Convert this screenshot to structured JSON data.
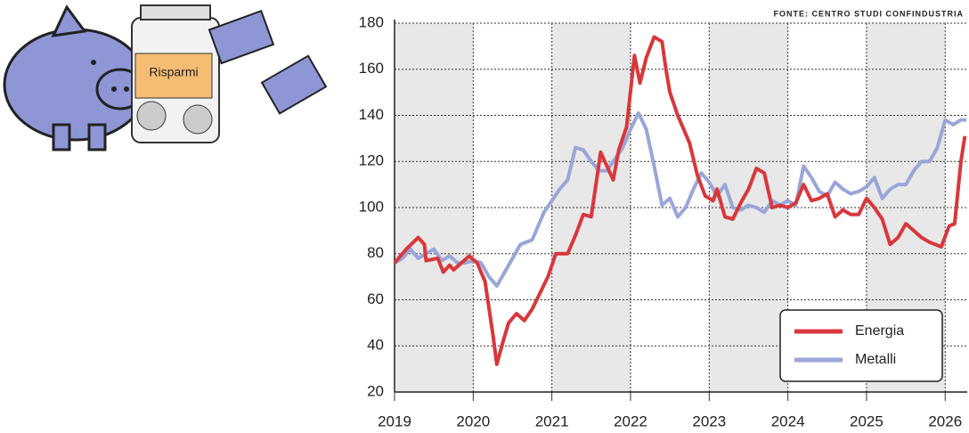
{
  "chart_data": {
    "type": "line",
    "source": "FONTE: CENTRO STUDI CONFINDUSTRIA",
    "illustration_label": "Risparmi",
    "xlim": [
      2019,
      2026.28
    ],
    "xticks": [
      2019,
      2020,
      2021,
      2022,
      2023,
      2024,
      2025,
      2026
    ],
    "ylim": [
      20,
      180
    ],
    "yticks": [
      20,
      40,
      60,
      80,
      100,
      120,
      140,
      160,
      180
    ],
    "grid": true,
    "legend": "lower right",
    "series": [
      {
        "name": "Energia",
        "color": "#d9373b",
        "x": [
          2019.0,
          2019.15,
          2019.3,
          2019.38,
          2019.4,
          2019.55,
          2019.62,
          2019.7,
          2019.75,
          2019.85,
          2019.95,
          2020.05,
          2020.15,
          2020.25,
          2020.3,
          2020.38,
          2020.45,
          2020.55,
          2020.65,
          2020.75,
          2020.85,
          2020.95,
          2021.05,
          2021.2,
          2021.3,
          2021.4,
          2021.5,
          2021.62,
          2021.7,
          2021.78,
          2021.85,
          2021.95,
          2022.05,
          2022.12,
          2022.2,
          2022.3,
          2022.4,
          2022.45,
          2022.5,
          2022.6,
          2022.75,
          2022.85,
          2022.95,
          2023.05,
          2023.1,
          2023.2,
          2023.3,
          2023.4,
          2023.5,
          2023.6,
          2023.7,
          2023.8,
          2023.9,
          2024.0,
          2024.1,
          2024.2,
          2024.3,
          2024.4,
          2024.5,
          2024.6,
          2024.7,
          2024.8,
          2024.9,
          2025.0,
          2025.1,
          2025.2,
          2025.3,
          2025.4,
          2025.5,
          2025.6,
          2025.7,
          2025.8,
          2025.95,
          2026.05,
          2026.12,
          2026.2,
          2026.25
        ],
        "values": [
          76,
          82,
          87,
          84,
          77,
          78,
          72,
          75,
          73,
          76,
          79,
          76,
          68,
          45,
          32,
          42,
          50,
          54,
          51,
          56,
          63,
          70,
          80,
          80,
          88,
          97,
          96,
          124,
          118,
          112,
          125,
          135,
          166,
          154,
          165,
          174,
          172,
          160,
          150,
          140,
          128,
          114,
          105,
          103,
          108,
          96,
          95,
          102,
          108,
          117,
          115,
          100,
          101,
          100,
          102,
          110,
          103,
          104,
          106,
          96,
          99,
          97,
          97,
          104,
          100,
          95,
          84,
          87,
          93,
          90,
          87,
          85,
          83,
          92,
          93,
          120,
          131
        ]
      },
      {
        "name": "Metalli",
        "color": "#99a6d8",
        "x": [
          2019.0,
          2019.1,
          2019.2,
          2019.3,
          2019.4,
          2019.5,
          2019.6,
          2019.7,
          2019.8,
          2019.9,
          2020.0,
          2020.1,
          2020.2,
          2020.3,
          2020.4,
          2020.5,
          2020.6,
          2020.75,
          2020.9,
          2021.0,
          2021.1,
          2021.2,
          2021.3,
          2021.4,
          2021.5,
          2021.6,
          2021.7,
          2021.8,
          2021.9,
          2022.0,
          2022.1,
          2022.2,
          2022.3,
          2022.4,
          2022.5,
          2022.6,
          2022.7,
          2022.8,
          2022.9,
          2023.0,
          2023.1,
          2023.2,
          2023.3,
          2023.4,
          2023.5,
          2023.6,
          2023.7,
          2023.8,
          2023.9,
          2024.0,
          2024.1,
          2024.2,
          2024.3,
          2024.4,
          2024.5,
          2024.6,
          2024.7,
          2024.8,
          2024.9,
          2025.0,
          2025.1,
          2025.2,
          2025.3,
          2025.4,
          2025.5,
          2025.6,
          2025.7,
          2025.8,
          2025.9,
          2026.0,
          2026.1,
          2026.2,
          2026.27
        ],
        "values": [
          76,
          78,
          82,
          78,
          80,
          82,
          77,
          79,
          76,
          76,
          77,
          76,
          70,
          66,
          72,
          78,
          84,
          86,
          98,
          103,
          108,
          112,
          126,
          125,
          120,
          116,
          116,
          121,
          126,
          134,
          141,
          134,
          118,
          101,
          104,
          96,
          100,
          108,
          115,
          111,
          105,
          110,
          100,
          99,
          101,
          100,
          98,
          103,
          101,
          103,
          101,
          118,
          113,
          107,
          105,
          111,
          108,
          106,
          107,
          109,
          113,
          104,
          108,
          110,
          110,
          116,
          120,
          120,
          126,
          138,
          136,
          138,
          138
        ]
      }
    ]
  }
}
